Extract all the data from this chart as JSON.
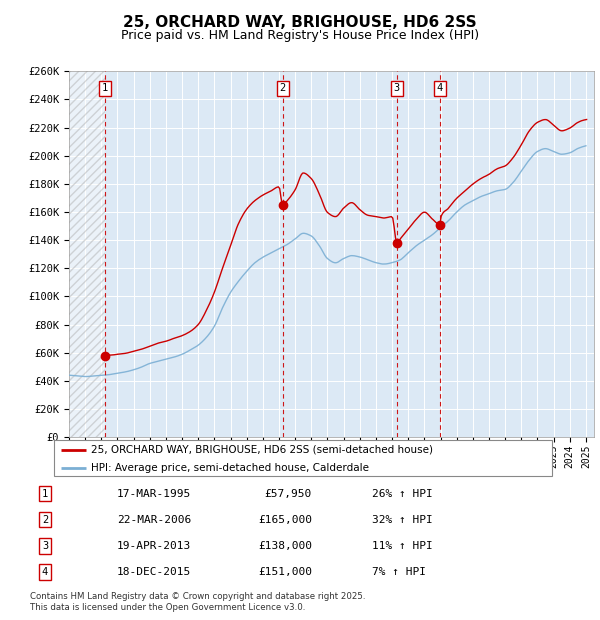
{
  "title": "25, ORCHARD WAY, BRIGHOUSE, HD6 2SS",
  "subtitle": "Price paid vs. HM Land Registry's House Price Index (HPI)",
  "ylabel_vals": [
    "£0",
    "£20K",
    "£40K",
    "£60K",
    "£80K",
    "£100K",
    "£120K",
    "£140K",
    "£160K",
    "£180K",
    "£200K",
    "£220K",
    "£240K",
    "£260K"
  ],
  "ylim": [
    0,
    260000
  ],
  "yticks": [
    0,
    20000,
    40000,
    60000,
    80000,
    100000,
    120000,
    140000,
    160000,
    180000,
    200000,
    220000,
    240000,
    260000
  ],
  "xmin": 1993.0,
  "xmax": 2025.5,
  "plot_bg": "#dce9f5",
  "transactions": [
    {
      "num": 1,
      "date": "17-MAR-1995",
      "price": 57950,
      "pct": "26%",
      "dir": "↑",
      "x_year": 1995.21
    },
    {
      "num": 2,
      "date": "22-MAR-2006",
      "price": 165000,
      "pct": "32%",
      "dir": "↑",
      "x_year": 2006.22
    },
    {
      "num": 3,
      "date": "19-APR-2013",
      "price": 138000,
      "pct": "11%",
      "dir": "↑",
      "x_year": 2013.3
    },
    {
      "num": 4,
      "date": "18-DEC-2015",
      "price": 151000,
      "pct": "7%",
      "dir": "↑",
      "x_year": 2015.96
    }
  ],
  "legend_line1": "25, ORCHARD WAY, BRIGHOUSE, HD6 2SS (semi-detached house)",
  "legend_line2": "HPI: Average price, semi-detached house, Calderdale",
  "footer": "Contains HM Land Registry data © Crown copyright and database right 2025.\nThis data is licensed under the Open Government Licence v3.0.",
  "red_color": "#cc0000",
  "blue_color": "#7bafd4",
  "hatch_end": 1995.21
}
